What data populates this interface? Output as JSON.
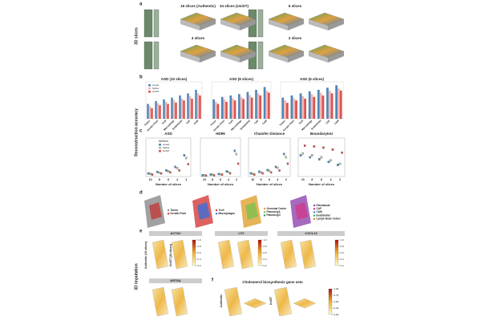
{
  "figure": {
    "side_labels": [
      "3D slices",
      "Reconstruction accuracy",
      "3D Imputation"
    ],
    "panel_a": {
      "label": "a",
      "captions": [
        "16 slices (Authentic)",
        "34 slices (UniST)",
        "6 slices",
        "4 slices",
        "2 slices"
      ]
    },
    "panel_b": {
      "label": "b",
      "categories": [
        "Tumor",
        "Keratin Pearl",
        "Tcell",
        "Macrophage",
        "Endothelial",
        "CAF",
        "CAM"
      ],
      "series": [
        {
          "name": "Linear",
          "color": "#4f86b8"
        },
        {
          "name": "Spline",
          "color": "#f2b8b5"
        },
        {
          "name": "UniST",
          "color": "#d9534f"
        }
      ],
      "ylim": [
        0,
        1
      ],
      "charts": [
        {
          "title": "ASD (10 slices)",
          "values": [
            [
              0.42,
              0.5,
              0.55,
              0.6,
              0.66,
              0.72,
              0.82
            ],
            [
              0.36,
              0.44,
              0.48,
              0.53,
              0.58,
              0.64,
              0.72
            ],
            [
              0.3,
              0.38,
              0.42,
              0.46,
              0.52,
              0.57,
              0.66
            ]
          ]
        },
        {
          "title": "ASD (8 slices)",
          "values": [
            [
              0.55,
              0.62,
              0.66,
              0.7,
              0.76,
              0.82,
              0.9
            ],
            [
              0.48,
              0.55,
              0.58,
              0.62,
              0.67,
              0.72,
              0.8
            ],
            [
              0.42,
              0.48,
              0.52,
              0.56,
              0.6,
              0.66,
              0.74
            ]
          ]
        },
        {
          "title": "ASD (6 slices)",
          "values": [
            [
              0.6,
              0.66,
              0.72,
              0.78,
              0.82,
              0.88,
              0.95
            ],
            [
              0.52,
              0.58,
              0.64,
              0.7,
              0.74,
              0.8,
              0.86
            ],
            [
              0.45,
              0.52,
              0.57,
              0.62,
              0.66,
              0.72,
              0.8
            ]
          ]
        }
      ]
    },
    "panel_c": {
      "label": "c",
      "legend_title": "Method",
      "methods": [
        {
          "name": "Linear",
          "color": "#4f86b8"
        },
        {
          "name": "Spline",
          "color": "#a8c5a0"
        },
        {
          "name": "UniST",
          "color": "#d9534f"
        }
      ],
      "x_label": "Number of slices",
      "xticks": [
        10,
        8,
        6,
        4,
        2
      ],
      "charts": [
        {
          "title": "ASD",
          "ylim": [
            0,
            10
          ],
          "medians": [
            [
              0.8,
              1.2,
              1.6,
              2.5,
              5.5
            ],
            [
              0.7,
              1.0,
              1.4,
              2.2,
              4.8
            ],
            [
              0.5,
              0.8,
              1.1,
              1.6,
              3.2
            ]
          ]
        },
        {
          "title": "HD95",
          "ylim": [
            0,
            60
          ],
          "medians": [
            [
              2,
              3,
              4,
              8,
              40
            ],
            [
              2,
              3,
              3.5,
              7,
              35
            ],
            [
              1.5,
              2,
              3,
              5,
              20
            ]
          ]
        },
        {
          "title": "Chamfer Distance",
          "ylim": [
            0,
            12
          ],
          "medians": [
            [
              1,
              1.5,
              2,
              3,
              7
            ],
            [
              0.9,
              1.3,
              1.8,
              2.7,
              6
            ],
            [
              0.6,
              1,
              1.3,
              1.9,
              4
            ]
          ]
        },
        {
          "title": "BoundaryIoU",
          "ylim": [
            0,
            1
          ],
          "medians": [
            [
              0.55,
              0.5,
              0.45,
              0.38,
              0.3
            ],
            [
              0.6,
              0.55,
              0.5,
              0.42,
              0.33
            ],
            [
              0.8,
              0.78,
              0.75,
              0.7,
              0.62
            ]
          ]
        }
      ]
    },
    "panel_d": {
      "label": "d",
      "groups": [
        {
          "items": [
            "Tumor",
            "Keratin Pearl"
          ],
          "colors": [
            "#8a8a8a",
            "#c23b3b"
          ]
        },
        {
          "items": [
            "Tcell",
            "Macrophages"
          ],
          "colors": [
            "#d63a3a",
            "#3a6fd6"
          ]
        },
        {
          "items": [
            "Germinal Center",
            "Plasma IgA",
            "Plasma IgG"
          ],
          "colors": [
            "#e0a030",
            "#7fbf4f",
            "#2f8f4f"
          ]
        },
        {
          "items": [
            "Fibroblasts",
            "CAF",
            "CAM",
            "Endothelial",
            "Lymph Node Cortex"
          ],
          "colors": [
            "#8e44ad",
            "#d13a8a",
            "#2e86c1",
            "#27ae60",
            "#e67e22"
          ]
        }
      ]
    },
    "panel_e": {
      "label": "e",
      "row_labels": [
        "Authentic (16 slices)",
        "UniST (34 slices)"
      ],
      "genes": [
        "ACTA2",
        "LYZ",
        "CXCL12",
        "KRT6A"
      ],
      "colorbar_ticks": [
        {
          "value": 0.2,
          "label": "0.2"
        },
        {
          "value": 0.4,
          "label": "0.4"
        },
        {
          "value": 0.6,
          "label": "0.6"
        },
        {
          "value": 0.8,
          "label": "0.8"
        },
        {
          "value": 1,
          "label": "1.0"
        }
      ]
    },
    "panel_f": {
      "label": "f",
      "title": "Cholesterol biosynthesis gene sets",
      "row_labels": [
        "Authentic",
        "UniST"
      ],
      "colorbar_ticks": [
        {
          "value": 0,
          "label": "0.00"
        },
        {
          "value": 0.25,
          "label": "0.25"
        },
        {
          "value": 0.5,
          "label": "0.50"
        },
        {
          "value": 0.75,
          "label": "0.75"
        },
        {
          "value": 1,
          "label": "1.00"
        }
      ]
    }
  }
}
